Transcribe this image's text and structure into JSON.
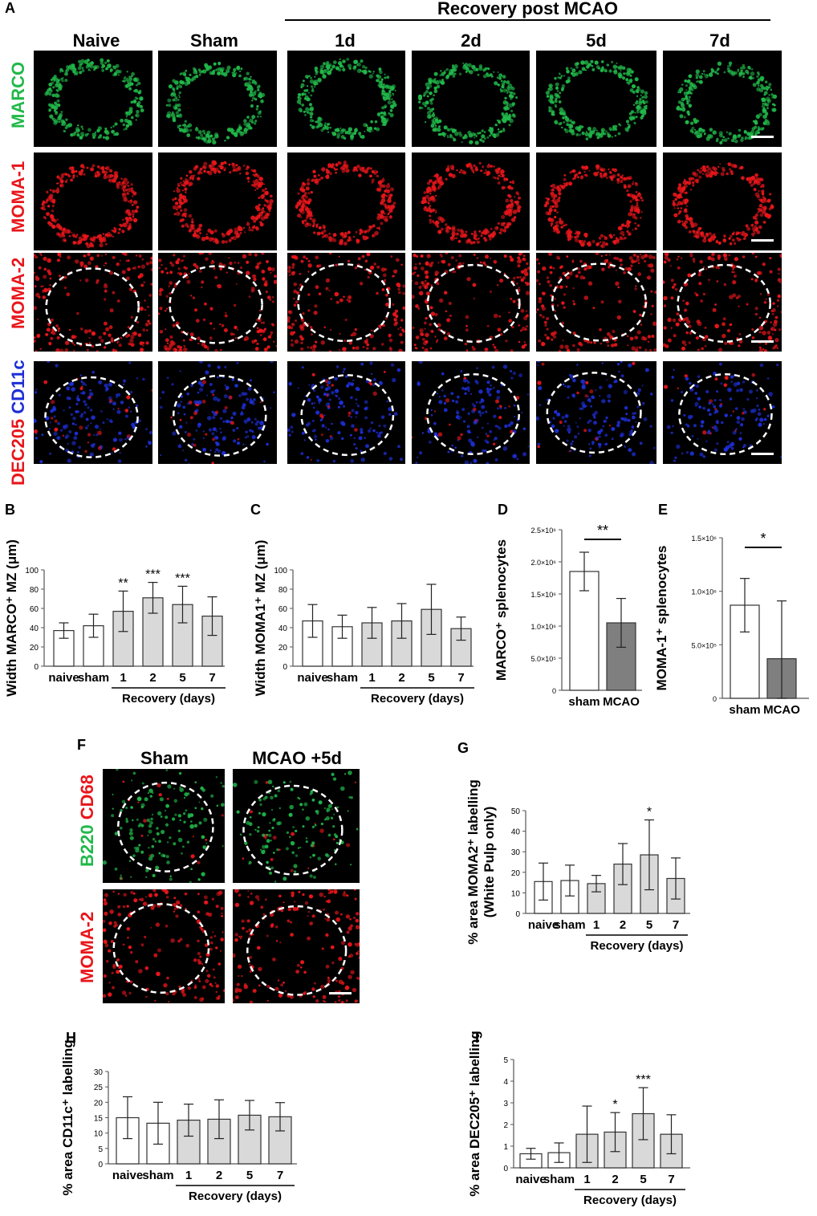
{
  "panel_letters": {
    "A": "A",
    "B": "B",
    "C": "C",
    "D": "D",
    "E": "E",
    "F": "F",
    "G": "G",
    "H": "H",
    "I": "I"
  },
  "panel_a": {
    "group_header": "Recovery post MCAO",
    "columns": [
      "Naive",
      "Sham",
      "1d",
      "2d",
      "5d",
      "7d"
    ],
    "rows": [
      {
        "label": "MARCO",
        "color": "#21b84a",
        "pattern": "ring"
      },
      {
        "label": "MOMA-1",
        "color": "#e8161b",
        "pattern": "ring"
      },
      {
        "label": "MOMA-2",
        "color": "#e8161b",
        "pattern": "outside"
      },
      {
        "label": "CD11c",
        "label2": "DEC205",
        "color": "#1d2fd6",
        "color2": "#e8161b",
        "pattern": "inside"
      }
    ]
  },
  "panel_f": {
    "columns": [
      "Sham",
      "MCAO +5d"
    ],
    "rows": [
      {
        "label": "B220",
        "label2": "CD68",
        "color": "#21b84a",
        "color2": "#e8161b"
      },
      {
        "label": "MOMA-2",
        "color": "#e8161b"
      }
    ]
  },
  "chart_data": [
    {
      "id": "B",
      "type": "bar",
      "ylabel": "Width MARCO⁺ MZ (μm)",
      "categories": [
        "naive",
        "sham",
        "1",
        "2",
        "5",
        "7"
      ],
      "values": [
        37,
        42,
        57,
        71,
        64,
        52
      ],
      "errors": [
        8,
        12,
        21,
        16,
        19,
        20
      ],
      "significance": [
        "",
        "",
        "**",
        "***",
        "***",
        ""
      ],
      "ylim": [
        0,
        100
      ],
      "yticks": [
        0,
        20,
        40,
        60,
        80,
        100
      ],
      "ytick_labels": [
        "0",
        "20",
        "40",
        "60",
        "80",
        "100"
      ],
      "group_label": "Recovery (days)",
      "group_span": [
        2,
        5
      ],
      "fills": [
        "#ffffff",
        "#ffffff",
        "#d9d9d9",
        "#d9d9d9",
        "#d9d9d9",
        "#d9d9d9"
      ]
    },
    {
      "id": "C",
      "type": "bar",
      "ylabel": "Width MOMA1⁺ MZ (μm)",
      "categories": [
        "naive",
        "sham",
        "1",
        "2",
        "5",
        "7"
      ],
      "values": [
        47,
        41,
        45,
        47,
        59,
        39
      ],
      "errors": [
        17,
        12,
        16,
        18,
        26,
        12
      ],
      "significance": [
        "",
        "",
        "",
        "",
        "",
        ""
      ],
      "ylim": [
        0,
        100
      ],
      "yticks": [
        0,
        20,
        40,
        60,
        80,
        100
      ],
      "ytick_labels": [
        "0",
        "20",
        "40",
        "60",
        "80",
        "100"
      ],
      "group_label": "Recovery (days)",
      "group_span": [
        2,
        5
      ],
      "fills": [
        "#ffffff",
        "#ffffff",
        "#d9d9d9",
        "#d9d9d9",
        "#d9d9d9",
        "#d9d9d9"
      ]
    },
    {
      "id": "D",
      "type": "bar",
      "ylabel": "MARCO⁺ splenocytes",
      "categories": [
        "sham",
        "MCAO"
      ],
      "values": [
        1850000,
        1050000
      ],
      "errors": [
        300000,
        380000
      ],
      "ylim": [
        0,
        2500000
      ],
      "yticks": [
        0,
        500000,
        1000000,
        1500000,
        2000000,
        2500000
      ],
      "ytick_labels": [
        "0",
        "5.0×10⁵",
        "1.0×10⁶",
        "1.5×10⁶",
        "2.0×10⁶",
        "2.5×10⁶"
      ],
      "comparison": "**",
      "fills": [
        "#ffffff",
        "#7f7f7f"
      ]
    },
    {
      "id": "E",
      "type": "bar",
      "ylabel": "MOMA-1⁺ splenocytes",
      "categories": [
        "sham",
        "MCAO"
      ],
      "values": [
        870000,
        370000
      ],
      "errors": [
        250000,
        540000
      ],
      "ylim": [
        0,
        1500000
      ],
      "yticks": [
        0,
        500000,
        1000000,
        1500000
      ],
      "ytick_labels": [
        "0",
        "5.0×10⁵",
        "1.0×10⁶",
        "1.5×10⁶"
      ],
      "comparison": "*",
      "fills": [
        "#ffffff",
        "#7f7f7f"
      ]
    },
    {
      "id": "G",
      "type": "bar",
      "ylabel": "% area MOMA2⁺ labelling",
      "ylabel2": "(White Pulp  only)",
      "categories": [
        "naive",
        "sham",
        "1",
        "2",
        "5",
        "7"
      ],
      "values": [
        15.5,
        16,
        14.5,
        24,
        28.5,
        17
      ],
      "errors": [
        9,
        7.5,
        4,
        10,
        17,
        10
      ],
      "significance": [
        "",
        "",
        "",
        "",
        "*",
        ""
      ],
      "ylim": [
        0,
        50
      ],
      "yticks": [
        0,
        10,
        20,
        30,
        40,
        50
      ],
      "ytick_labels": [
        "0",
        "10",
        "20",
        "30",
        "40",
        "50"
      ],
      "group_label": "Recovery (days)",
      "group_span": [
        2,
        5
      ],
      "fills": [
        "#ffffff",
        "#ffffff",
        "#d9d9d9",
        "#d9d9d9",
        "#d9d9d9",
        "#d9d9d9"
      ]
    },
    {
      "id": "H",
      "type": "bar",
      "ylabel": "% area CD11c⁺ labelling",
      "categories": [
        "naive",
        "sham",
        "1",
        "2",
        "5",
        "7"
      ],
      "values": [
        15,
        13.2,
        14.2,
        14.5,
        15.8,
        15.3
      ],
      "errors": [
        6.8,
        6.8,
        5.2,
        6.3,
        4.8,
        4.6
      ],
      "significance": [
        "",
        "",
        "",
        "",
        "",
        ""
      ],
      "ylim": [
        0,
        30
      ],
      "yticks": [
        0,
        5,
        10,
        15,
        20,
        25,
        30
      ],
      "ytick_labels": [
        "0",
        "5",
        "10",
        "15",
        "20",
        "25",
        "30"
      ],
      "group_label": "Recovery (days)",
      "group_span": [
        2,
        5
      ],
      "fills": [
        "#ffffff",
        "#ffffff",
        "#d9d9d9",
        "#d9d9d9",
        "#d9d9d9",
        "#d9d9d9"
      ]
    },
    {
      "id": "I",
      "type": "bar",
      "ylabel": "% area DEC205⁺ labelling",
      "categories": [
        "naive",
        "sham",
        "1",
        "2",
        "5",
        "7"
      ],
      "values": [
        0.65,
        0.7,
        1.55,
        1.65,
        2.5,
        1.55
      ],
      "errors": [
        0.25,
        0.45,
        1.3,
        0.9,
        1.2,
        0.9
      ],
      "significance": [
        "",
        "",
        "",
        "*",
        "***",
        ""
      ],
      "ylim": [
        0,
        5
      ],
      "yticks": [
        0,
        1,
        2,
        3,
        4,
        5
      ],
      "ytick_labels": [
        "0",
        "1",
        "2",
        "3",
        "4",
        "5"
      ],
      "group_label": "Recovery (days)",
      "group_span": [
        2,
        5
      ],
      "fills": [
        "#ffffff",
        "#ffffff",
        "#d9d9d9",
        "#d9d9d9",
        "#d9d9d9",
        "#d9d9d9"
      ]
    }
  ]
}
